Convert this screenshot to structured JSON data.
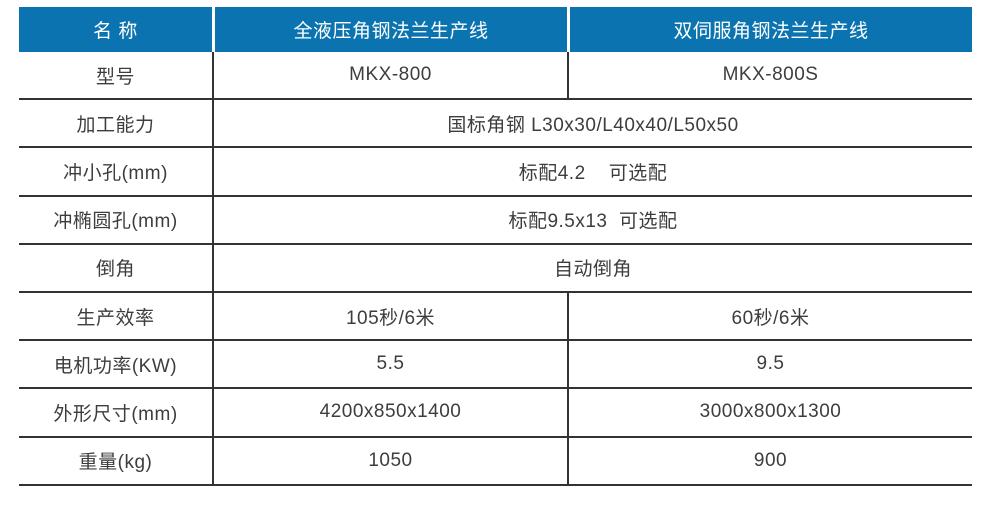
{
  "table": {
    "header": {
      "name_label": "名 称",
      "product_left": "全液压角钢法兰生产线",
      "product_right": "双伺服角钢法兰生产线"
    },
    "rows": [
      {
        "label": "型号",
        "col2": "MKX-800",
        "col3": "MKX-800S"
      },
      {
        "label": "加工能力",
        "merged": "国标角钢 L30x30/L40x40/L50x50"
      },
      {
        "label": "冲小孔(mm)",
        "merged": "标配4.2    可选配"
      },
      {
        "label": "冲椭圆孔(mm)",
        "merged": "标配9.5x13  可选配"
      },
      {
        "label": "倒角",
        "merged": "自动倒角"
      },
      {
        "label": "生产效率",
        "col2": "105秒/6米",
        "col3": "60秒/6米"
      },
      {
        "label": "电机功率(KW)",
        "col2": "5.5",
        "col3": "9.5"
      },
      {
        "label": "外形尺寸(mm)",
        "col2": "4200x850x1400",
        "col3": "3000x800x1300"
      },
      {
        "label": "重量(kg)",
        "col2": "1050",
        "col3": "900"
      }
    ],
    "colors": {
      "header_background": "#0b74b0",
      "header_text": "#ffffff",
      "border": "#333333",
      "body_text": "#3d3d3d"
    }
  }
}
